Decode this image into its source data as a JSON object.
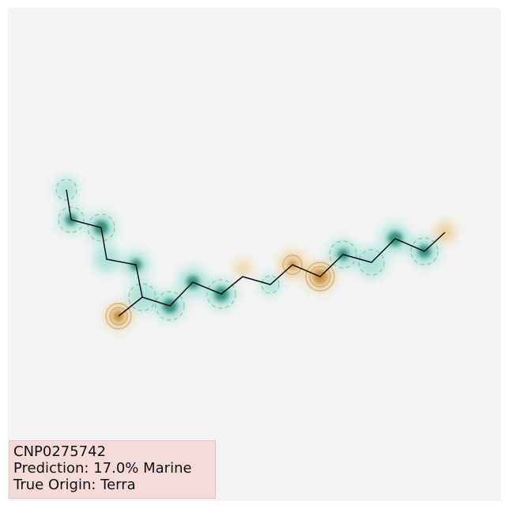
{
  "compound": {
    "id": "CNP0275742",
    "prediction": "Prediction: 17.0% Marine",
    "true_origin": "True Origin: Terra"
  },
  "colors": {
    "background": "#f4f4f4",
    "marine_attribution": "#0d7f6f",
    "terra_attribution": "#c98a1c",
    "bond": "#111111",
    "info_box": "#f5dada"
  }
}
